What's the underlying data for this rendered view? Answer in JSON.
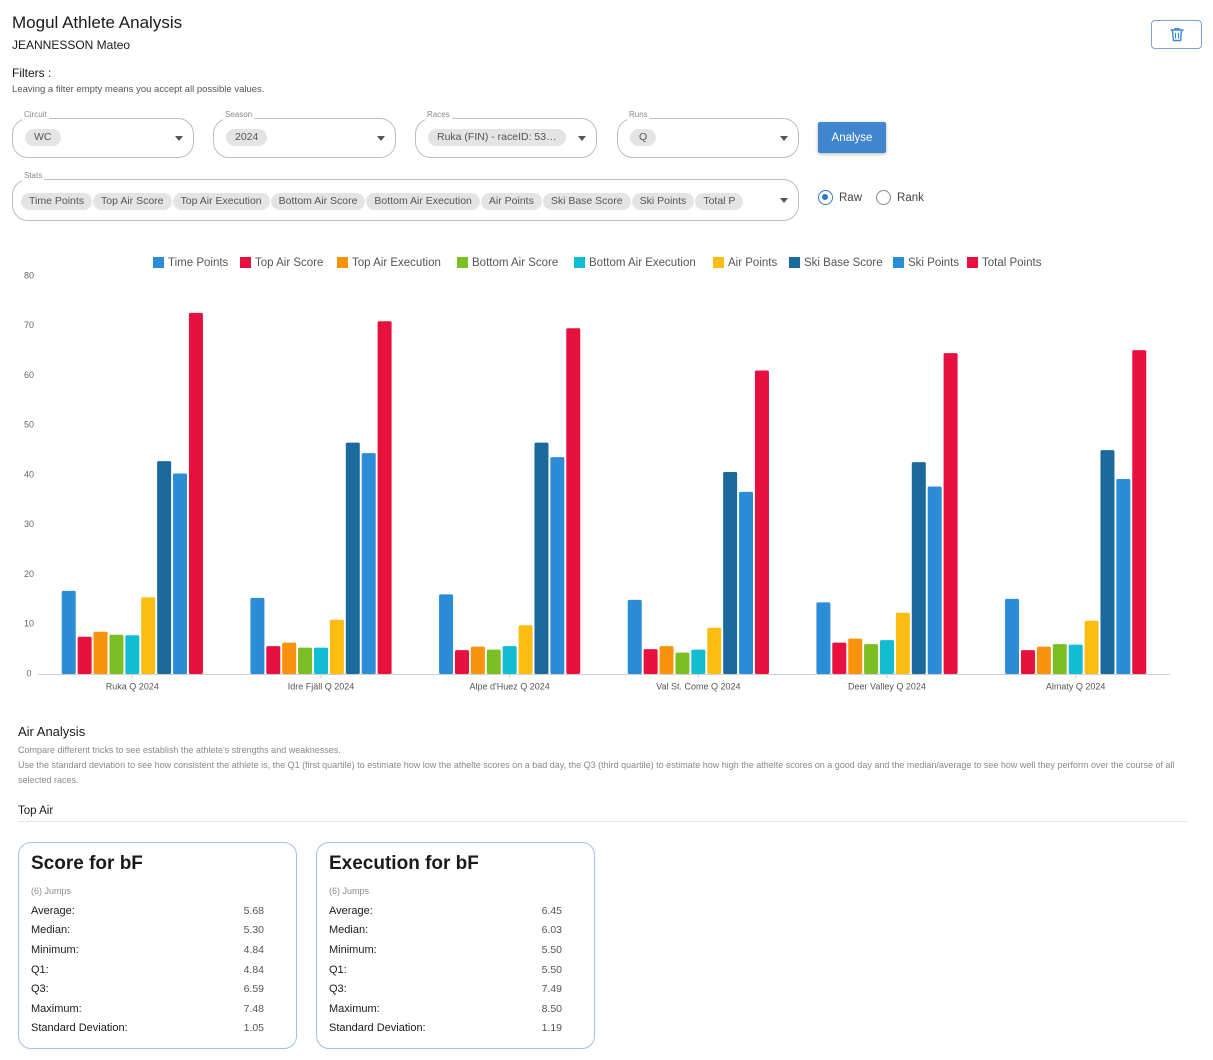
{
  "header": {
    "title": "Mogul Athlete Analysis",
    "athlete": "JEANNESSON Mateo"
  },
  "filters": {
    "label": "Filters :",
    "help": "Leaving a filter empty means you accept all possible values.",
    "circuit": {
      "label": "Circuit",
      "value": "WC"
    },
    "season": {
      "label": "Season",
      "value": "2024"
    },
    "races": {
      "label": "Races",
      "value": "Ruka (FIN) - raceID: 53…"
    },
    "runs": {
      "label": "Runs",
      "value": "Q"
    },
    "analyse_label": "Analyse",
    "stats": {
      "label": "Stats",
      "values": [
        "Time Points",
        "Top Air Score",
        "Top Air Execution",
        "Bottom Air Score",
        "Bottom Air Execution",
        "Air Points",
        "Ski Base Score",
        "Ski Points",
        "Total P"
      ]
    },
    "mode": {
      "raw_label": "Raw",
      "rank_label": "Rank",
      "selected": "Raw"
    }
  },
  "chart_data": {
    "type": "bar",
    "categories": [
      "Ruka Q 2024",
      "Idre Fjäll Q 2024",
      "Alpe d'Huez Q 2024",
      "Val St. Come Q 2024",
      "Deer Valley Q 2024",
      "Almaty Q 2024"
    ],
    "ylim": [
      0,
      80
    ],
    "yticks": [
      0,
      10,
      20,
      30,
      40,
      50,
      60,
      70,
      80
    ],
    "grid": false,
    "legend_position": "top",
    "series": [
      {
        "name": "Time Points",
        "color": "#2b8cd8",
        "values": [
          16.7,
          15.3,
          16.0,
          14.9,
          14.4,
          15.1
        ]
      },
      {
        "name": "Top Air Score",
        "color": "#e8103f",
        "values": [
          7.5,
          5.6,
          4.8,
          5.0,
          6.3,
          4.8
        ]
      },
      {
        "name": "Top Air Execution",
        "color": "#f8930c",
        "values": [
          8.5,
          6.3,
          5.5,
          5.6,
          7.1,
          5.5
        ]
      },
      {
        "name": "Bottom Air Score",
        "color": "#7cbf24",
        "values": [
          7.9,
          5.3,
          4.9,
          4.3,
          6.0,
          6.0
        ]
      },
      {
        "name": "Bottom Air Execution",
        "color": "#12bcd2",
        "values": [
          7.8,
          5.3,
          5.6,
          4.9,
          6.8,
          5.9
        ]
      },
      {
        "name": "Air Points",
        "color": "#fbbd12",
        "values": [
          15.4,
          10.9,
          9.8,
          9.3,
          12.3,
          10.7
        ]
      },
      {
        "name": "Ski Base Score",
        "color": "#1b6a9e",
        "values": [
          42.8,
          46.5,
          46.5,
          40.6,
          42.6,
          45.0
        ]
      },
      {
        "name": "Ski Points",
        "color": "#2b8cd8",
        "values": [
          40.3,
          44.4,
          43.6,
          36.6,
          37.7,
          39.2
        ]
      },
      {
        "name": "Total Points",
        "color": "#e8103f",
        "values": [
          72.6,
          70.9,
          69.5,
          61.0,
          64.5,
          65.1
        ]
      }
    ]
  },
  "air_analysis": {
    "title": "Air Analysis",
    "desc1": "Compare different tricks to see establish the athlete's strengths and weaknesses.",
    "desc2": "Use the standard deviation to see how consistent the athlete is, the Q1 (first quartile) to estimate how low the athelte scores on a bad day, the Q3 (third quartile) to estimate how high the athelte scores on a good day and the median/average to see how well they perform over the course of all selected races.",
    "top_air_label": "Top Air",
    "cards": [
      {
        "title": "Score for bF",
        "jumps": "(6) Jumps",
        "rows": [
          {
            "label": "Average:",
            "value": "5.68"
          },
          {
            "label": "Median:",
            "value": "5.30"
          },
          {
            "label": "Minimum:",
            "value": "4.84"
          },
          {
            "label": "Q1:",
            "value": "4.84"
          },
          {
            "label": "Q3:",
            "value": "6.59"
          },
          {
            "label": "Maximum:",
            "value": "7.48"
          },
          {
            "label": "Standard Deviation:",
            "value": "1.05"
          }
        ]
      },
      {
        "title": "Execution for bF",
        "jumps": "(6) Jumps",
        "rows": [
          {
            "label": "Average:",
            "value": "6.45"
          },
          {
            "label": "Median:",
            "value": "6.03"
          },
          {
            "label": "Minimum:",
            "value": "5.50"
          },
          {
            "label": "Q1:",
            "value": "5.50"
          },
          {
            "label": "Q3:",
            "value": "7.49"
          },
          {
            "label": "Maximum:",
            "value": "8.50"
          },
          {
            "label": "Standard Deviation:",
            "value": "1.19"
          }
        ]
      }
    ]
  }
}
